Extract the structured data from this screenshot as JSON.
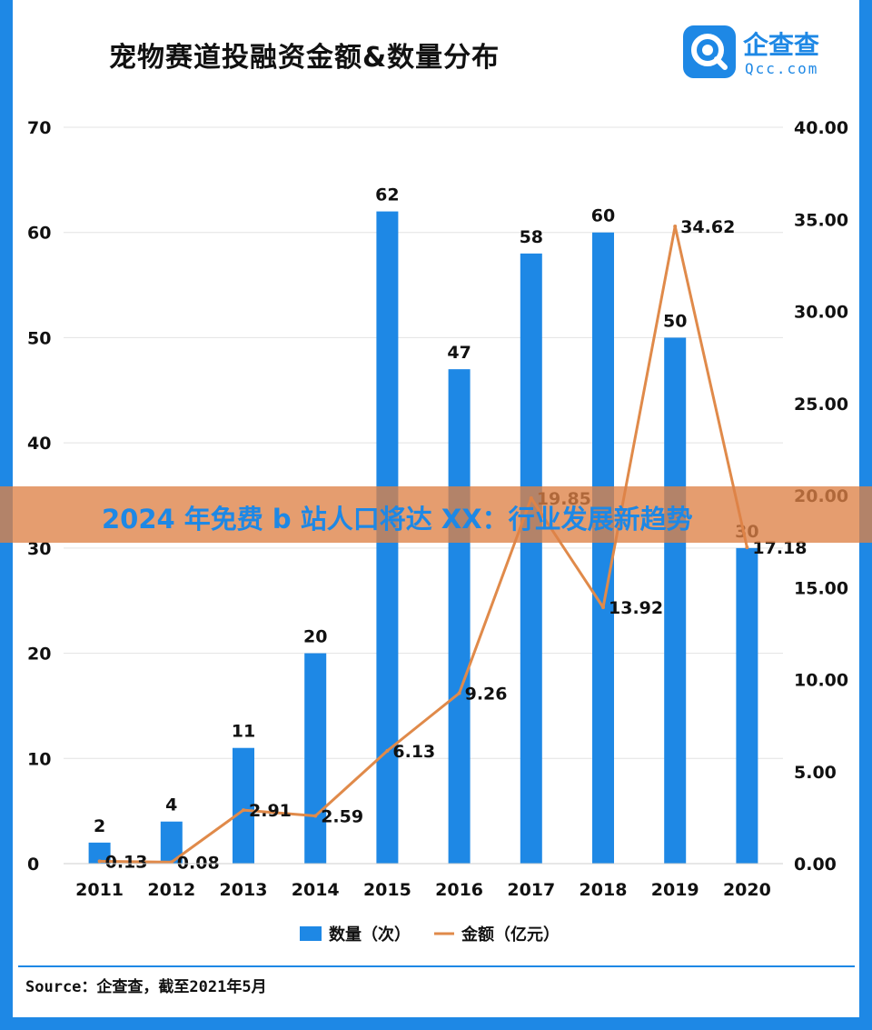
{
  "title": "宠物赛道投融资金额&数量分布",
  "brand": {
    "name": "企查查",
    "sub": "Qcc.com",
    "color": "#1e88e5"
  },
  "banner": {
    "text": "2024 年免费 b 站人口将达 XX：行业发展新趋势"
  },
  "source": "Source：企查查，截至2021年5月",
  "chart_data": {
    "type": "bar+line",
    "categories": [
      "2011",
      "2012",
      "2013",
      "2014",
      "2015",
      "2016",
      "2017",
      "2018",
      "2019",
      "2020"
    ],
    "series": [
      {
        "name": "数量（次）",
        "type": "bar",
        "axis": "left",
        "color": "#1e88e5",
        "values": [
          2,
          4,
          11,
          20,
          62,
          47,
          58,
          60,
          50,
          30
        ],
        "labels": [
          "2",
          "4",
          "11",
          "20",
          "62",
          "47",
          "58",
          "60",
          "50",
          "30"
        ]
      },
      {
        "name": "金额（亿元）",
        "type": "line",
        "axis": "right",
        "color": "#e08a4a",
        "values": [
          0.13,
          0.08,
          2.91,
          2.59,
          6.13,
          9.26,
          19.85,
          13.92,
          34.62,
          17.18
        ],
        "labels": [
          "0.13",
          "0.08",
          "2.91",
          "2.59",
          "6.13",
          "9.26",
          "19.85",
          "13.92",
          "34.62",
          "17.18"
        ]
      }
    ],
    "y_left": {
      "min": 0,
      "max": 70,
      "ticks": [
        "0",
        "10",
        "20",
        "30",
        "40",
        "50",
        "60",
        "70"
      ]
    },
    "y_right": {
      "min": 0,
      "max": 40,
      "ticks": [
        "0.00",
        "5.00",
        "10.00",
        "15.00",
        "20.00",
        "25.00",
        "30.00",
        "35.00",
        "40.00"
      ]
    },
    "grid": true,
    "legend": "bottom"
  }
}
